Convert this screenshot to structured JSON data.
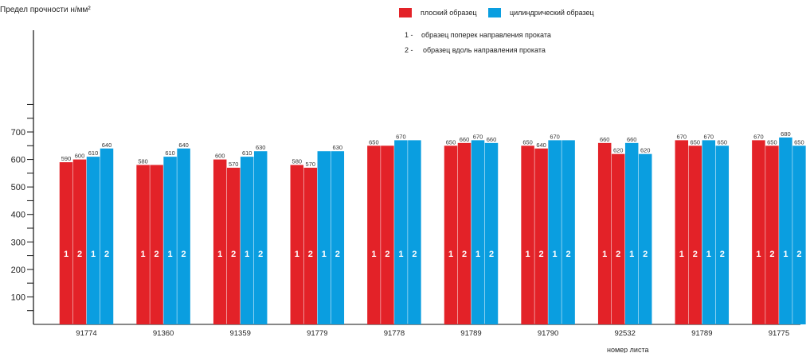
{
  "chart_data": {
    "type": "bar",
    "title": "Предел прочности н/мм²",
    "ylabel": "Предел прочности н/мм²",
    "xlabel": "номер листа",
    "ylim": [
      0,
      1100
    ],
    "yticks": [
      100,
      200,
      300,
      400,
      500,
      600,
      700
    ],
    "grid": false,
    "legend_placement": "top-right",
    "categories": [
      "91774",
      "91360",
      "91359",
      "91779",
      "91778",
      "91789",
      "91790",
      "92532",
      "91789",
      "91775"
    ],
    "series": [
      {
        "name": "плоский образец",
        "sample": "1",
        "color": "#e32228",
        "values": [
          590,
          580,
          600,
          580,
          650,
          650,
          650,
          660,
          670,
          670
        ]
      },
      {
        "name": "плоский образец",
        "sample": "2",
        "color": "#e32228",
        "values": [
          600,
          580,
          570,
          570,
          650,
          660,
          640,
          620,
          650,
          650
        ]
      },
      {
        "name": "цилиндрический образец",
        "sample": "1",
        "color": "#0a9ee0",
        "values": [
          610,
          610,
          610,
          630,
          670,
          670,
          670,
          660,
          670,
          680
        ]
      },
      {
        "name": "цилиндрический образец",
        "sample": "2",
        "color": "#0a9ee0",
        "values": [
          640,
          640,
          630,
          630,
          670,
          660,
          670,
          620,
          650,
          650
        ]
      }
    ],
    "value_labels": [
      [
        "590",
        "600",
        "610",
        "640"
      ],
      [
        "580",
        "",
        "610",
        "640"
      ],
      [
        "600",
        "570",
        "610",
        "630"
      ],
      [
        "580",
        "570",
        "",
        "630"
      ],
      [
        "650",
        "",
        "670",
        ""
      ],
      [
        "650",
        "660",
        "670",
        "660"
      ],
      [
        "650",
        "640",
        "670",
        ""
      ],
      [
        "660",
        "620",
        "660",
        "620"
      ],
      [
        "670",
        "650",
        "670",
        "650"
      ],
      [
        "670",
        "650",
        "680",
        "650"
      ]
    ],
    "bar_numbers": [
      "1",
      "2",
      "1",
      "2"
    ],
    "legend": [
      {
        "label": "плоский образец",
        "color": "#e32228"
      },
      {
        "label": "цилиндрический образец",
        "color": "#0a9ee0"
      }
    ],
    "notes": [
      {
        "num": "1 -",
        "text": "образец поперек направления проката"
      },
      {
        "num": "2 -",
        "text": "образец вдоль направления проката"
      }
    ]
  }
}
